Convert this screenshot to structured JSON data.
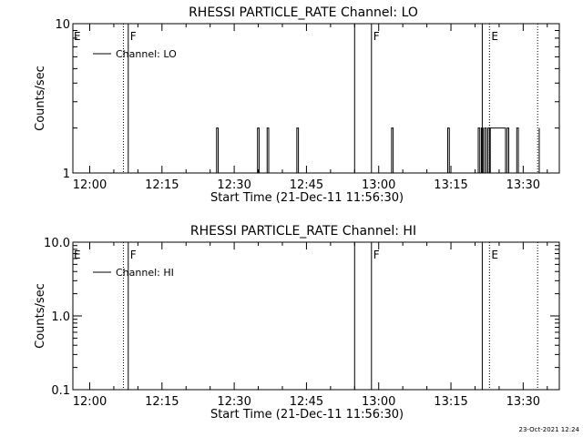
{
  "footer": {
    "timestamp": "23-Oct-2021 12:24"
  },
  "chart_data": [
    {
      "type": "line",
      "title": "RHESSI PARTICLE_RATE Channel: LO",
      "xlabel": "Start Time (21-Dec-11 11:56:30)",
      "ylabel": "Counts/sec",
      "y_scale": "log",
      "ylim": [
        1,
        10
      ],
      "y_ticks": [
        "1",
        "10"
      ],
      "xlim": [
        "11:56:30",
        "13:37:30"
      ],
      "x_ticks": [
        "12:00",
        "12:15",
        "12:30",
        "12:45",
        "13:00",
        "13:15",
        "13:30"
      ],
      "legend": {
        "placement": "top-left",
        "entries": [
          "Channel: LO"
        ]
      },
      "series": [
        {
          "name": "Channel: LO",
          "points": [
            [
              "12:26:00",
              1
            ],
            [
              "12:26:20",
              2
            ],
            [
              "12:26:40",
              1
            ],
            [
              "12:34:30",
              1
            ],
            [
              "12:34:50",
              2
            ],
            [
              "12:35:10",
              1
            ],
            [
              "12:36:30",
              1
            ],
            [
              "12:36:50",
              2
            ],
            [
              "12:37:10",
              1
            ],
            [
              "12:42:40",
              1
            ],
            [
              "12:43:00",
              2
            ],
            [
              "12:43:20",
              1
            ],
            [
              "13:02:20",
              1
            ],
            [
              "13:02:40",
              2
            ],
            [
              "13:03:00",
              1
            ],
            [
              "13:14:00",
              1
            ],
            [
              "13:14:20",
              2
            ],
            [
              "13:14:40",
              1
            ],
            [
              "13:20:20",
              1
            ],
            [
              "13:20:40",
              2
            ],
            [
              "13:21:00",
              1
            ],
            [
              "13:21:20",
              2
            ],
            [
              "13:21:40",
              1
            ],
            [
              "13:22:00",
              2
            ],
            [
              "13:22:20",
              1
            ],
            [
              "13:22:40",
              2
            ],
            [
              "13:23:00",
              1
            ],
            [
              "13:23:10",
              2
            ],
            [
              "13:26:00",
              2
            ],
            [
              "13:26:20",
              1
            ],
            [
              "13:26:40",
              2
            ],
            [
              "13:27:00",
              1
            ],
            [
              "13:28:20",
              1
            ],
            [
              "13:28:40",
              2
            ],
            [
              "13:29:00",
              1
            ],
            [
              "13:33:00",
              1
            ],
            [
              "13:33:20",
              2
            ]
          ]
        }
      ],
      "markers": [
        {
          "label": "E",
          "time": "11:56:30",
          "style": "none"
        },
        {
          "label": "",
          "time": "12:07:00",
          "style": "dotted"
        },
        {
          "label": "F",
          "time": "12:08:00",
          "style": "solid"
        },
        {
          "label": "",
          "time": "12:55:00",
          "style": "solid"
        },
        {
          "label": "F",
          "time": "12:58:30",
          "style": "solid"
        },
        {
          "label": "",
          "time": "13:21:30",
          "style": "solid"
        },
        {
          "label": "E",
          "time": "13:23:00",
          "style": "dotted"
        },
        {
          "label": "",
          "time": "13:33:00",
          "style": "dotted"
        }
      ]
    },
    {
      "type": "line",
      "title": "RHESSI PARTICLE_RATE Channel: HI",
      "xlabel": "Start Time (21-Dec-11 11:56:30)",
      "ylabel": "Counts/sec",
      "y_scale": "log",
      "ylim": [
        0.1,
        10
      ],
      "y_ticks": [
        "0.1",
        "1.0",
        "10.0"
      ],
      "xlim": [
        "11:56:30",
        "13:37:30"
      ],
      "x_ticks": [
        "12:00",
        "12:15",
        "12:30",
        "12:45",
        "13:00",
        "13:15",
        "13:30"
      ],
      "legend": {
        "placement": "top-left",
        "entries": [
          "Channel: HI"
        ]
      },
      "series": [
        {
          "name": "Channel: HI",
          "points": []
        }
      ],
      "markers": [
        {
          "label": "E",
          "time": "11:56:30",
          "style": "none"
        },
        {
          "label": "",
          "time": "12:07:00",
          "style": "dotted"
        },
        {
          "label": "F",
          "time": "12:08:00",
          "style": "solid"
        },
        {
          "label": "",
          "time": "12:55:00",
          "style": "solid"
        },
        {
          "label": "F",
          "time": "12:58:30",
          "style": "solid"
        },
        {
          "label": "",
          "time": "13:21:30",
          "style": "solid"
        },
        {
          "label": "E",
          "time": "13:23:00",
          "style": "dotted"
        },
        {
          "label": "",
          "time": "13:33:00",
          "style": "dotted"
        }
      ]
    }
  ]
}
